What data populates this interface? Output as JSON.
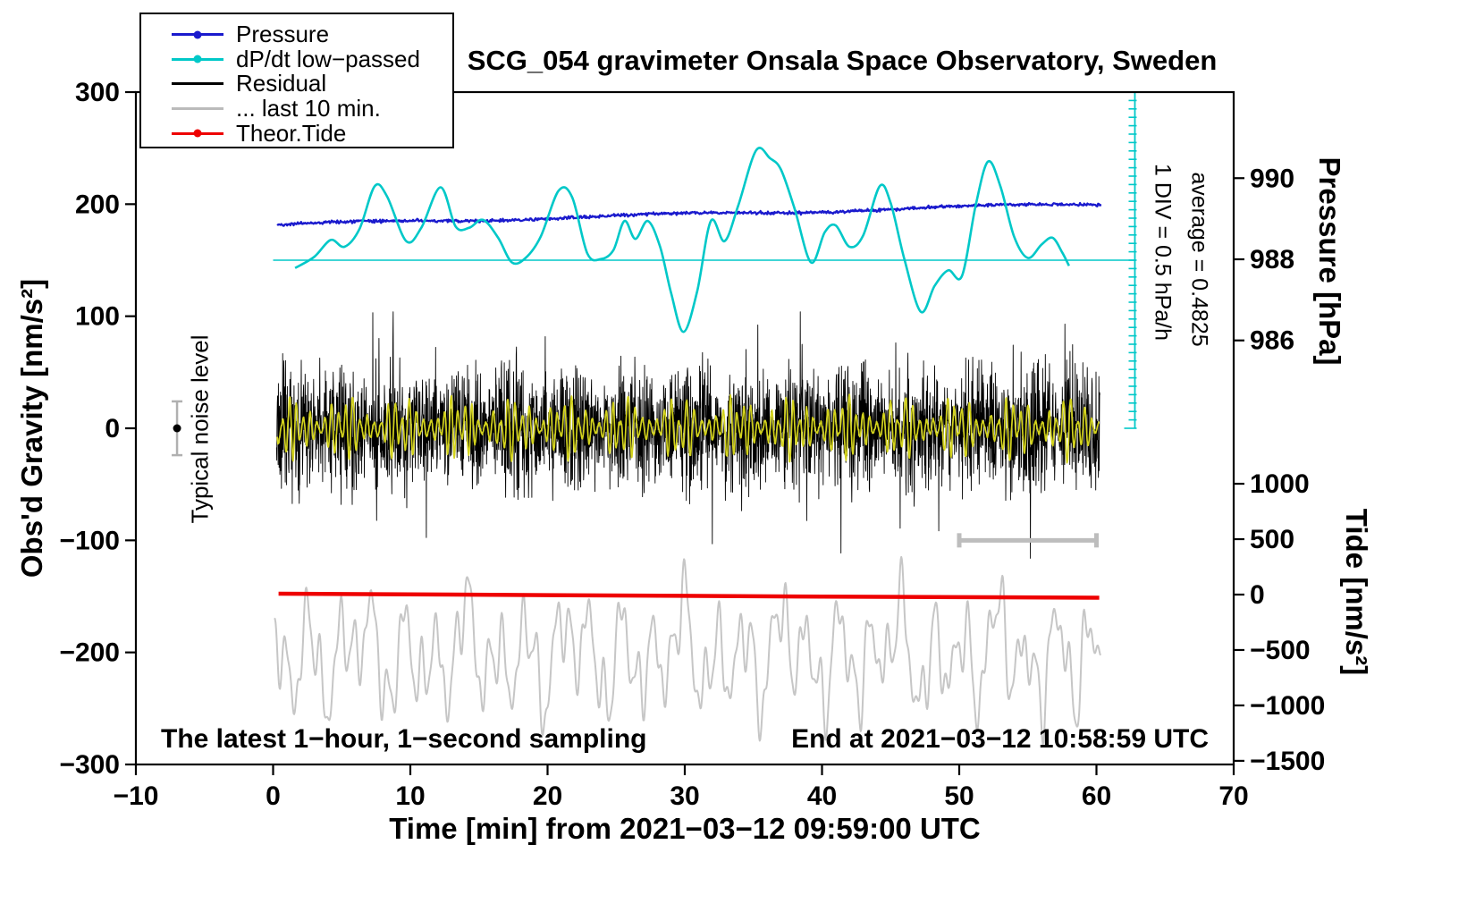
{
  "chart_data": {
    "type": "line",
    "title": "SCG_054 gravimeter Onsala Space Observatory, Sweden",
    "xlabel": "Time [min] from 2021−03−12 09:59:00 UTC",
    "ylabel_left": "Obs'd Gravity [nm/s²]",
    "ylabel_right_pressure": "Pressure [hPa]",
    "ylabel_right_tide": "Tide [nm/s²]",
    "xlim": [
      -10,
      70
    ],
    "ylim_left": [
      -300,
      300
    ],
    "x_ticks": [
      -10,
      0,
      10,
      20,
      30,
      40,
      50,
      60,
      70
    ],
    "y_ticks_left": [
      -300,
      -200,
      -100,
      0,
      100,
      200,
      300
    ],
    "grid": false,
    "legend_position": "top-left",
    "pressure_axis": {
      "ticks": [
        986,
        988,
        990
      ],
      "gravity_at_988": 150.8,
      "gravity_per_hpa": 36.2
    },
    "tide_axis": {
      "ticks": [
        1000,
        500,
        0,
        -500,
        -1000,
        -1500
      ],
      "gravity_at_0": -148.4,
      "gravity_per_unit": 0.0989
    },
    "legend": [
      {
        "label": "Pressure",
        "color": "#1a1acd",
        "dot": true
      },
      {
        "label": "dP/dt low−passed",
        "color": "#00c8c8",
        "dot": true
      },
      {
        "label": "Residual",
        "color": "#000000",
        "dot": false
      },
      {
        "label": "... last 10 min.",
        "color": "#bbbbbb",
        "dot": false
      },
      {
        "label": "Theor.Tide",
        "color": "#ee0000",
        "dot": true
      }
    ],
    "annotations": {
      "noise_label": "Typical noise level",
      "div_label": "1 DIV = 0.5 hPa/h",
      "average_label": "average = 0.4825",
      "sampling_label": "The latest 1−hour, 1−second sampling",
      "end_label": "End at 2021−03−12 10:58:59 UTC"
    },
    "series": [
      {
        "name": "... last 10 min.",
        "kind": "sines",
        "color": "#c6c6c6",
        "width": 2,
        "t0": 0.1,
        "t1": 60.3,
        "step": 0.04,
        "mean": -203,
        "components": [
          [
            30,
            2.27,
            0.4
          ],
          [
            22,
            1.21,
            2.1
          ],
          [
            17,
            3.9,
            4.0
          ],
          [
            13,
            0.83,
            1.2
          ],
          [
            9,
            0.53,
            5.3
          ],
          [
            10,
            7.7,
            2.6
          ]
        ]
      },
      {
        "name": "Theor.Tide",
        "kind": "segment",
        "color": "#ee0000",
        "width": 4.5,
        "points": [
          [
            0.4,
            -147.6
          ],
          [
            20,
            -148.9
          ],
          [
            40,
            -150.2
          ],
          [
            60.2,
            -151.2
          ]
        ]
      },
      {
        "name": "Residual",
        "kind": "noise",
        "color": "#000000",
        "width": 0.9,
        "t0": 0.25,
        "t1": 60.25,
        "n": 3200,
        "sigma": 25,
        "env_period": 8.3,
        "spike_prob": 0.015,
        "spike_amp": 65,
        "clip": [
          -116,
          104
        ],
        "seed": 911
      },
      {
        "name": "Residual smoothed",
        "kind": "bursts",
        "color": "#d3d31d",
        "width": 1.7,
        "t0": 0.3,
        "t1": 60.2,
        "step": 0.025,
        "base_amp": 4,
        "mod_amp": 26,
        "mod_p1": 8.1,
        "mod_p2": 2.9,
        "carrier_period": 0.52,
        "noise": 1.4,
        "seed": 77
      },
      {
        "name": "Pressure",
        "kind": "trend",
        "color": "#1a1acd",
        "width": 2.3,
        "t0": 0.3,
        "t1": 60.4,
        "step": 0.06,
        "start": 181.5,
        "end": 200.5,
        "noise": 1.0,
        "wave": 1.3,
        "wave_period": 23,
        "seed": 42
      },
      {
        "name": "dP/dt low−passed",
        "kind": "spline",
        "color": "#00c8c8",
        "width": 2.6,
        "points": [
          [
            1.6,
            143
          ],
          [
            3.0,
            153
          ],
          [
            4.2,
            168
          ],
          [
            5.2,
            162
          ],
          [
            6.3,
            178
          ],
          [
            7.4,
            216
          ],
          [
            8.3,
            207
          ],
          [
            9.7,
            167
          ],
          [
            10.8,
            179
          ],
          [
            12.2,
            215
          ],
          [
            13.3,
            180
          ],
          [
            14.3,
            179
          ],
          [
            15.3,
            186
          ],
          [
            16.4,
            170
          ],
          [
            17.4,
            148
          ],
          [
            18.4,
            152
          ],
          [
            19.5,
            171
          ],
          [
            20.8,
            212
          ],
          [
            21.8,
            206
          ],
          [
            22.9,
            156
          ],
          [
            23.9,
            151
          ],
          [
            24.8,
            159
          ],
          [
            25.6,
            185
          ],
          [
            26.4,
            169
          ],
          [
            27.3,
            185
          ],
          [
            28.2,
            162
          ],
          [
            29.0,
            121
          ],
          [
            29.9,
            86
          ],
          [
            30.9,
            122
          ],
          [
            31.9,
            185
          ],
          [
            32.9,
            167
          ],
          [
            33.9,
            199
          ],
          [
            35.2,
            248
          ],
          [
            36.2,
            241
          ],
          [
            37.0,
            231
          ],
          [
            38.0,
            196
          ],
          [
            39.2,
            148
          ],
          [
            40.2,
            175
          ],
          [
            41.0,
            181
          ],
          [
            42.0,
            162
          ],
          [
            43.0,
            172
          ],
          [
            44.2,
            216
          ],
          [
            45.0,
            201
          ],
          [
            46.0,
            151
          ],
          [
            47.2,
            104
          ],
          [
            48.2,
            127
          ],
          [
            49.2,
            141
          ],
          [
            50.2,
            136
          ],
          [
            51.2,
            199
          ],
          [
            52.1,
            238
          ],
          [
            53.0,
            216
          ],
          [
            54.0,
            171
          ],
          [
            55.0,
            152
          ],
          [
            56.0,
            164
          ],
          [
            56.8,
            170
          ],
          [
            57.5,
            157
          ],
          [
            58.0,
            145
          ]
        ]
      }
    ],
    "overlays": {
      "dpdt_axis": {
        "t": 62.8,
        "g_top": 300,
        "g_bottom": 0,
        "g_center": 150,
        "center_from_t": 0,
        "divisions": 40,
        "color": "#00c8c8"
      },
      "scalebar": {
        "t0": 50,
        "t1": 60,
        "g": -100,
        "color": "#bdbdbd",
        "width": 5,
        "cap": 8
      },
      "noise_marker": {
        "t": -7,
        "g": 0,
        "err": 24,
        "dot_r": 4.5,
        "dot_color": "#000000",
        "bar_color": "#b0b0b0"
      }
    }
  }
}
